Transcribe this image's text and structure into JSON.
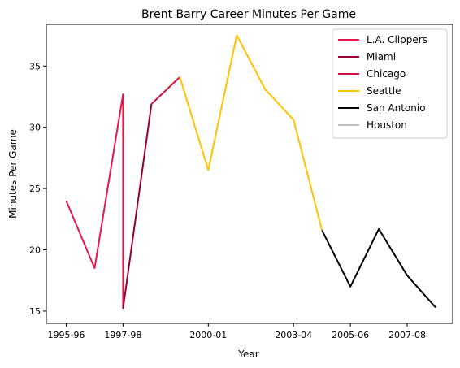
{
  "chart_data": {
    "type": "line",
    "title": "Brent Barry Career Minutes Per Game",
    "xlabel": "Year",
    "ylabel": "Minutes Per Game",
    "x_ticks": [
      "1995-96",
      "1997-98",
      "2000-01",
      "2003-04",
      "2005-06",
      "2007-08"
    ],
    "x_tick_positions": [
      0,
      2,
      5,
      8,
      10,
      12
    ],
    "xlim": [
      -0.7,
      13.6
    ],
    "y_ticks": [
      15,
      20,
      25,
      30,
      35
    ],
    "ylim": [
      14.0,
      38.4
    ],
    "legend_position": "top-right",
    "series": [
      {
        "name": "L.A. Clippers",
        "color": "#e4174d",
        "points": [
          [
            0,
            24.0
          ],
          [
            1,
            18.5
          ],
          [
            2,
            32.7
          ],
          [
            2,
            15.2
          ]
        ]
      },
      {
        "name": "Miami",
        "color": "#98002e",
        "points": [
          [
            2,
            15.2
          ],
          [
            3,
            31.9
          ]
        ]
      },
      {
        "name": "Chicago",
        "color": "#ce1141",
        "points": [
          [
            3,
            31.9
          ],
          [
            4,
            34.1
          ]
        ]
      },
      {
        "name": "Seattle",
        "color": "#ffc200",
        "points": [
          [
            4,
            34.1
          ],
          [
            5,
            26.5
          ],
          [
            6,
            37.5
          ],
          [
            7,
            33.1
          ],
          [
            8,
            30.6
          ],
          [
            9,
            21.6
          ]
        ]
      },
      {
        "name": "San Antonio",
        "color": "#000000",
        "points": [
          [
            9,
            21.6
          ],
          [
            10,
            17.0
          ],
          [
            11,
            21.7
          ],
          [
            12,
            17.9
          ],
          [
            13,
            15.3
          ]
        ]
      },
      {
        "name": "Houston",
        "color": "#bfbfbf",
        "points": []
      }
    ]
  }
}
